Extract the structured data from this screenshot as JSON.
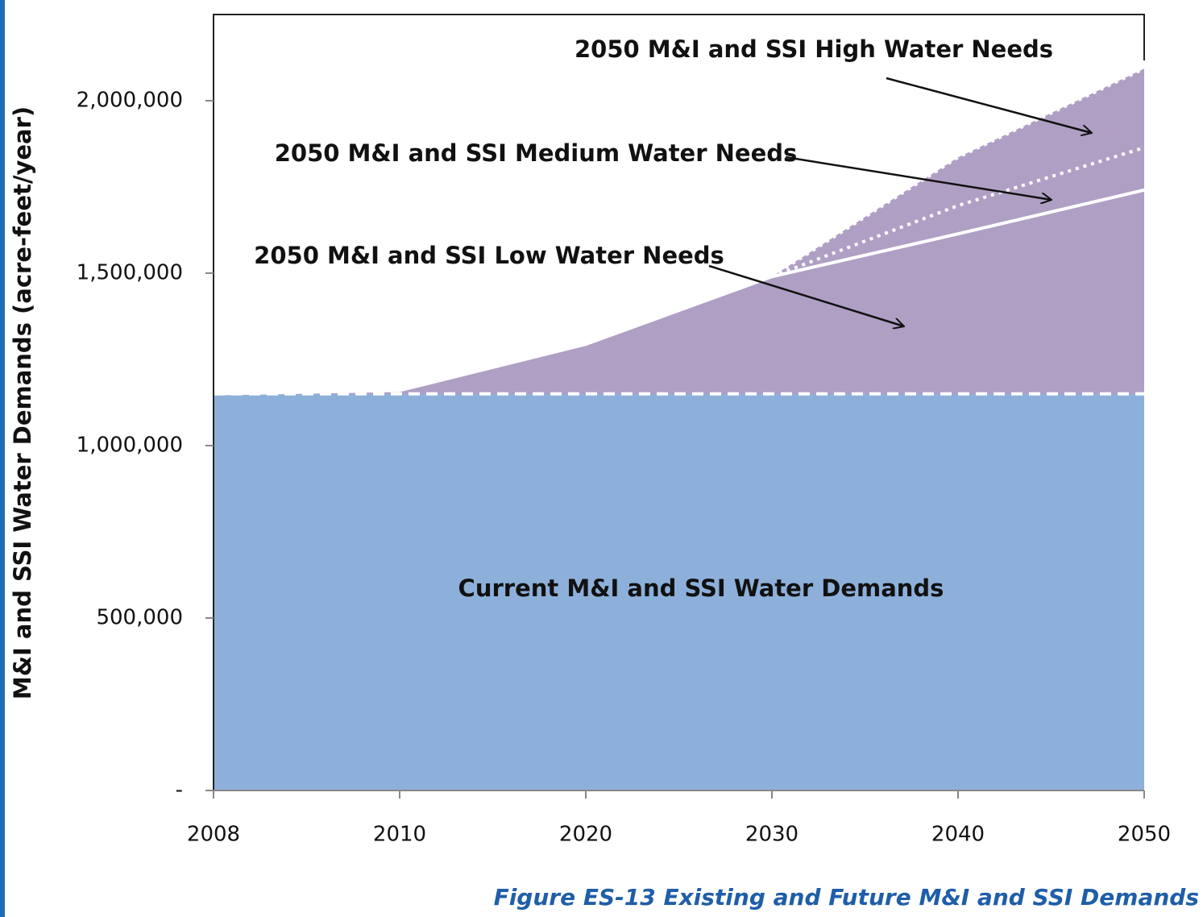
{
  "chart_data": {
    "type": "area",
    "title": "Figure ES-13 Existing and Future M&I and SSI Demands",
    "ylabel": "M&I and SSI Water Demands (acre-feet/year)",
    "categories": [
      "2008",
      "2010",
      "2020",
      "2030",
      "2040",
      "2050"
    ],
    "ylim": [
      0,
      2250000
    ],
    "yticks": [
      {
        "value": 0,
        "label": "-"
      },
      {
        "value": 500000,
        "label": "500,000"
      },
      {
        "value": 1000000,
        "label": "1,000,000"
      },
      {
        "value": 1500000,
        "label": "1,500,000"
      },
      {
        "value": 2000000,
        "label": "2,000,000"
      }
    ],
    "series": [
      {
        "name": "2050 M&I and SSI High Water Needs",
        "color": "#b09fc4",
        "values": [
          null,
          null,
          null,
          1490000,
          1836000,
          2093000
        ]
      },
      {
        "name": "2050 M&I and SSI Medium Water Needs",
        "color": "#b09fc4",
        "values": [
          null,
          null,
          null,
          1490000,
          1696000,
          1864000
        ]
      },
      {
        "name": "2050 M&I and SSI Low Water Needs",
        "color": "#b09fc4",
        "values": [
          1150000,
          1160000,
          1294000,
          1490000,
          1614000,
          1741000
        ]
      },
      {
        "name": "Current M&I and SSI Water Demands",
        "color": "#8db0da",
        "values": [
          1150000,
          1150000,
          1150000,
          1150000,
          1150000,
          1150000
        ]
      }
    ]
  }
}
